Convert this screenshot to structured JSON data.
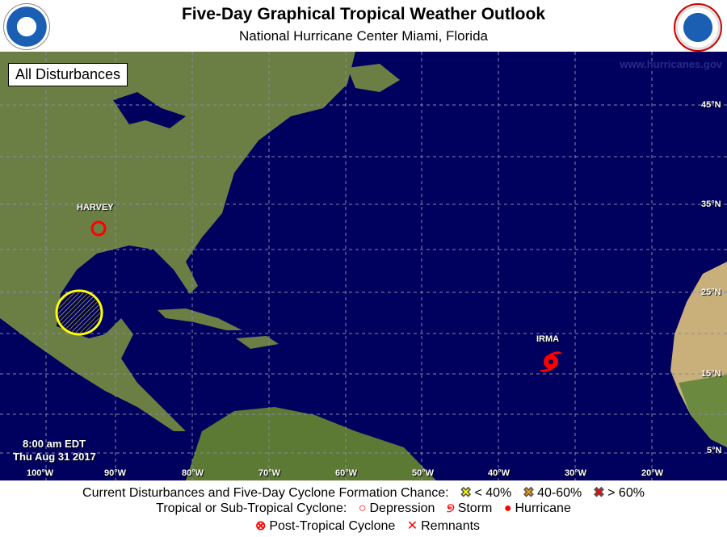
{
  "header": {
    "title": "Five-Day Graphical Tropical Weather Outlook",
    "subtitle": "National Hurricane Center  Miami, Florida",
    "left_logo": "NOAA",
    "right_logo": "National Weather Service"
  },
  "map": {
    "view_label": "All Disturbances",
    "watermark": "www.hurricanes.gov",
    "timestamp_time": "8:00 am EDT",
    "timestamp_date": "Thu Aug 31 2017",
    "longitude_labels": [
      "100°W",
      "90°W",
      "80°W",
      "70°W",
      "60°W",
      "50°W",
      "40°W",
      "30°W",
      "20°W"
    ],
    "latitude_labels": [
      "45°N",
      "35°N",
      "25°N",
      "15°N",
      "5°N"
    ],
    "systems": [
      {
        "name": "HARVEY",
        "type": "Depression",
        "color": "#ff0000"
      },
      {
        "name": "IRMA",
        "type": "Hurricane",
        "color": "#ff0000"
      }
    ],
    "disturbance_area": {
      "chance": "< 40%",
      "color": "#ffff00"
    }
  },
  "legend": {
    "row1_label": "Current Disturbances and Five-Day Cyclone Formation Chance:",
    "low": "< 40%",
    "low_color": "#ffff00",
    "mid": "40-60%",
    "mid_color": "#ff9900",
    "high": "> 60%",
    "high_color": "#ff0000",
    "row2_label": "Tropical or Sub-Tropical Cyclone:",
    "depression": "Depression",
    "storm": "Storm",
    "hurricane": "Hurricane",
    "post_tropical": "Post-Tropical Cyclone",
    "remnants": "Remnants"
  }
}
